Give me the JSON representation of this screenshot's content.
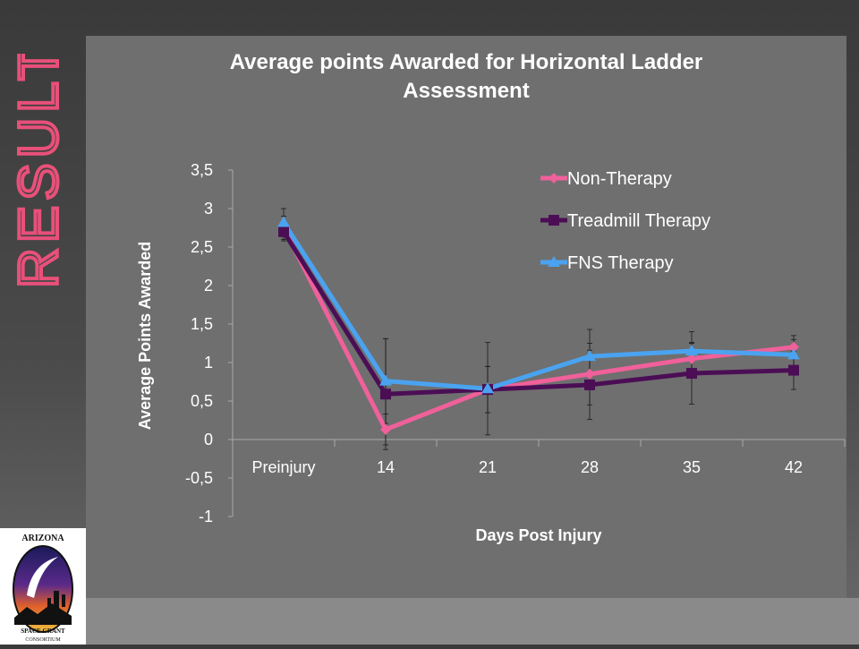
{
  "slide": {
    "heading": "RESULTS",
    "heading_color": "#e8507a",
    "logo_text_top": "ARIZONA",
    "logo_text_bottom_1": "SPACE GRANT",
    "logo_text_bottom_2": "CONSORTIUM"
  },
  "chart_data": {
    "type": "line",
    "title": "Average points Awarded for Horizontal Ladder Assessment",
    "title_line_1": "Average points Awarded for Horizontal Ladder",
    "title_line_2": "Assessment",
    "xlabel": "Days Post Injury",
    "ylabel": "Average Points Awarded",
    "categories": [
      "Preinjury",
      "14",
      "21",
      "28",
      "35",
      "42"
    ],
    "y_ticks": [
      "3,5",
      "3",
      "2,5",
      "2",
      "1,5",
      "1",
      "0,5",
      "0",
      "-0,5",
      "-1"
    ],
    "ylim": [
      -1,
      3.5
    ],
    "grid": false,
    "legend_position": "top-right",
    "series": [
      {
        "name": "Non-Therapy",
        "color": "#f0609a",
        "marker": "diamond",
        "values": [
          2.75,
          0.13,
          0.65,
          0.85,
          1.05,
          1.2
        ],
        "errors": [
          0.15,
          0.2,
          0.3,
          0.4,
          0.2,
          0.15
        ]
      },
      {
        "name": "Treadmill Therapy",
        "color": "#4b0e55",
        "marker": "square",
        "values": [
          2.7,
          0.59,
          0.65,
          0.71,
          0.86,
          0.9
        ],
        "errors": [
          0.12,
          0.72,
          0.3,
          0.45,
          0.4,
          0.25
        ]
      },
      {
        "name": "FNS Therapy",
        "color": "#4aa3f0",
        "marker": "triangle",
        "values": [
          2.82,
          0.76,
          0.66,
          1.08,
          1.15,
          1.1
        ],
        "errors": [
          0.18,
          0.55,
          0.6,
          0.35,
          0.25,
          0.2
        ]
      }
    ]
  }
}
